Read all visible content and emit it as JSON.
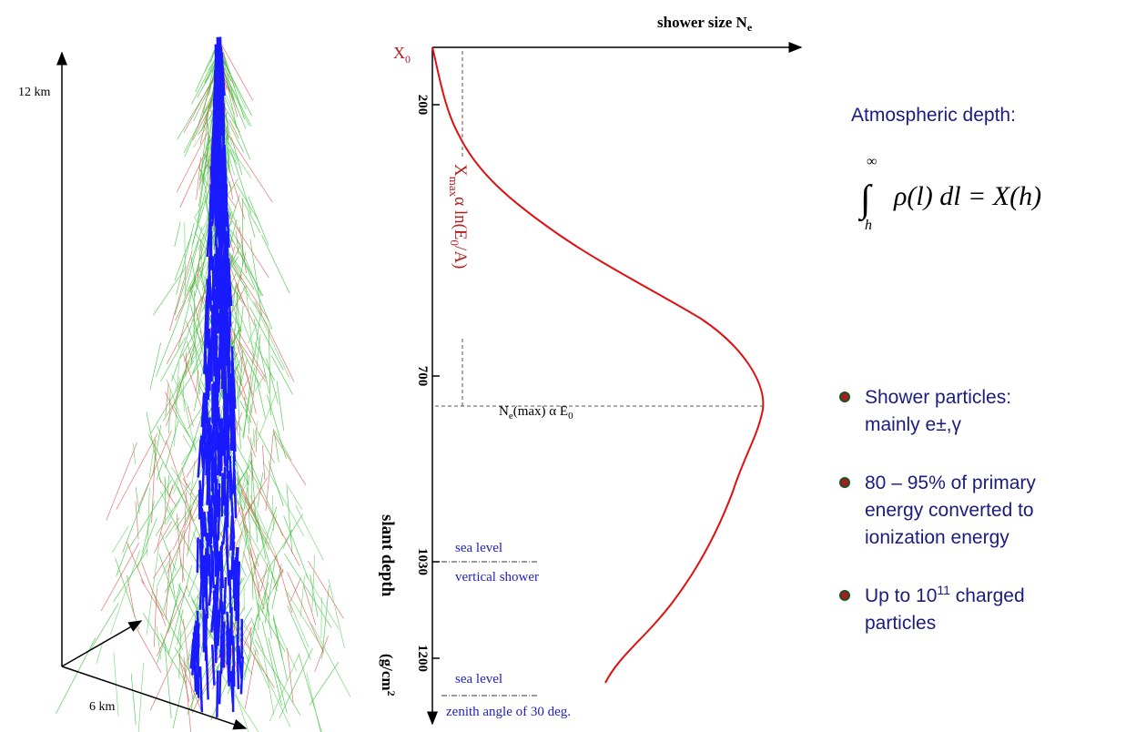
{
  "shower": {
    "height_label": "12 km",
    "width_label": "6 km"
  },
  "profile": {
    "x_axis": {
      "text": "shower size N",
      "sub": "e"
    },
    "y_axis": {
      "text": "slant depth",
      "unit": "(g/cm",
      "sup": "2"
    },
    "ticks": [
      "200",
      "700",
      "1030",
      "1200"
    ],
    "x0": {
      "text": "X",
      "sub": "0"
    },
    "xmax": {
      "text": "X",
      "sub": "max",
      "rest": "α  ln(E",
      "sub2": "0",
      "end": "/A)"
    },
    "nemax": {
      "text": "N",
      "sub": "e",
      "rest": "(max) α E",
      "sub2": "0"
    },
    "sea_vertical": {
      "top": "sea level",
      "bottom": "vertical shower"
    },
    "sea_zenith": {
      "top": "sea level",
      "bottom": "zenith angle of 30 deg."
    }
  },
  "side": {
    "title": "Atmospheric depth:",
    "formula": {
      "upper": "∞",
      "lower": "h",
      "body": "ρ(l) dl = X(h)"
    },
    "bullets": [
      {
        "lines": [
          "Shower particles:",
          "mainly e±,γ"
        ]
      },
      {
        "lines": [
          "80 – 95% of primary",
          "energy converted to",
          "ionization energy"
        ]
      },
      {
        "pre": "Up to 10",
        "sup": "11",
        "post": " charged",
        "lines": [
          "particles"
        ]
      }
    ]
  }
}
